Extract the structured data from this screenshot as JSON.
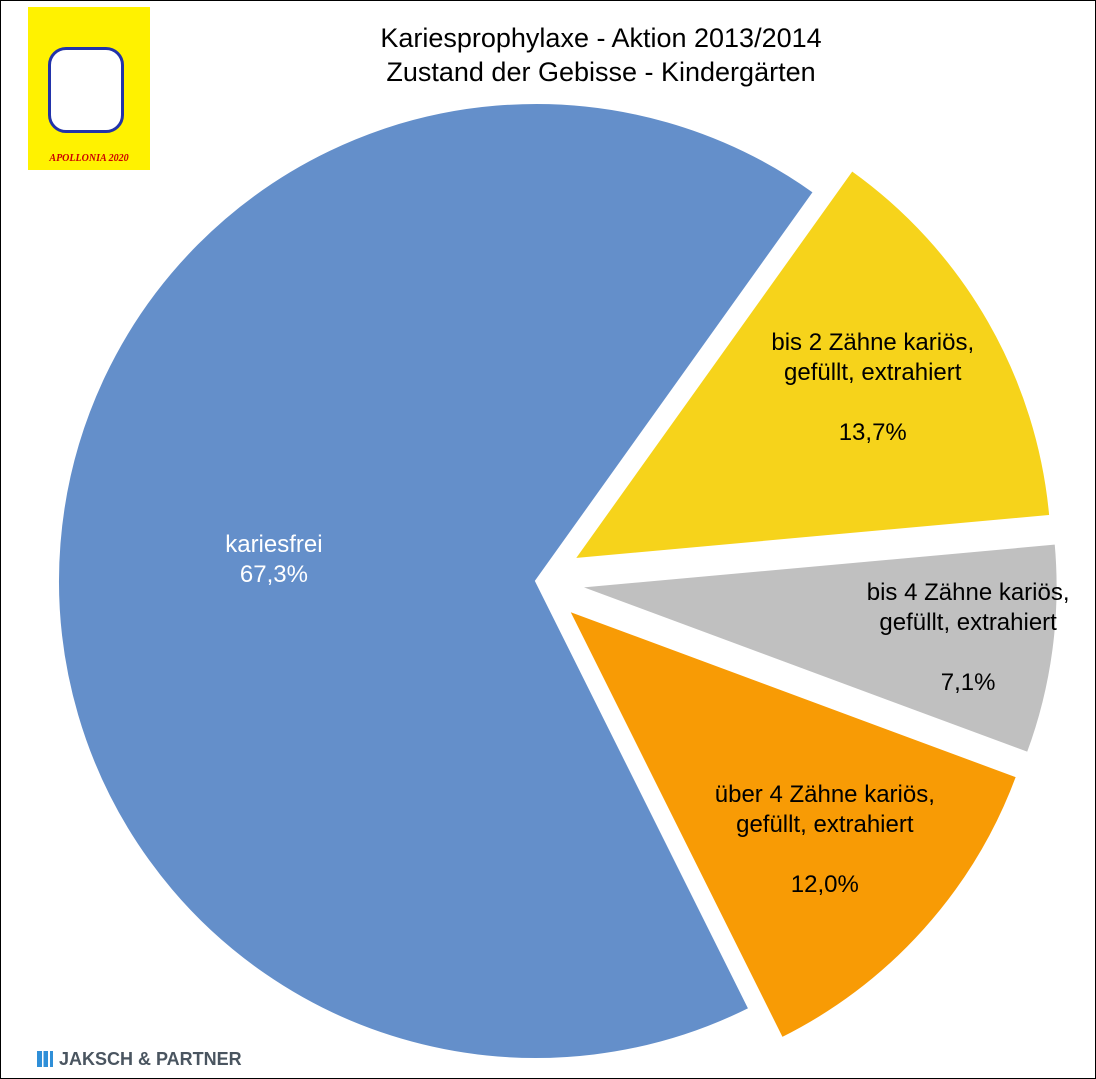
{
  "chart_data": {
    "type": "pie",
    "title": "Kariesprophylaxe - Aktion 2013/2014",
    "subtitle": "Zustand der Gebisse - Kindergärten",
    "categories": [
      "kariesfrei",
      "bis 2 Zähne kariös, gefüllt, extrahiert",
      "bis 4 Zähne kariös, gefüllt, extrahiert",
      "über 4 Zähne kariös, gefüllt, extrahiert"
    ],
    "values": [
      67.3,
      13.7,
      7.1,
      12.0
    ],
    "value_labels": [
      "67,3%",
      "13,7%",
      "7,1%",
      "12,0%"
    ],
    "colors": [
      "#648fca",
      "#f6d31b",
      "#c0c0c0",
      "#f89b05"
    ]
  },
  "logo": {
    "text": "APOLLONIA 2020"
  },
  "footer": {
    "text": "JAKSCH & PARTNER"
  }
}
